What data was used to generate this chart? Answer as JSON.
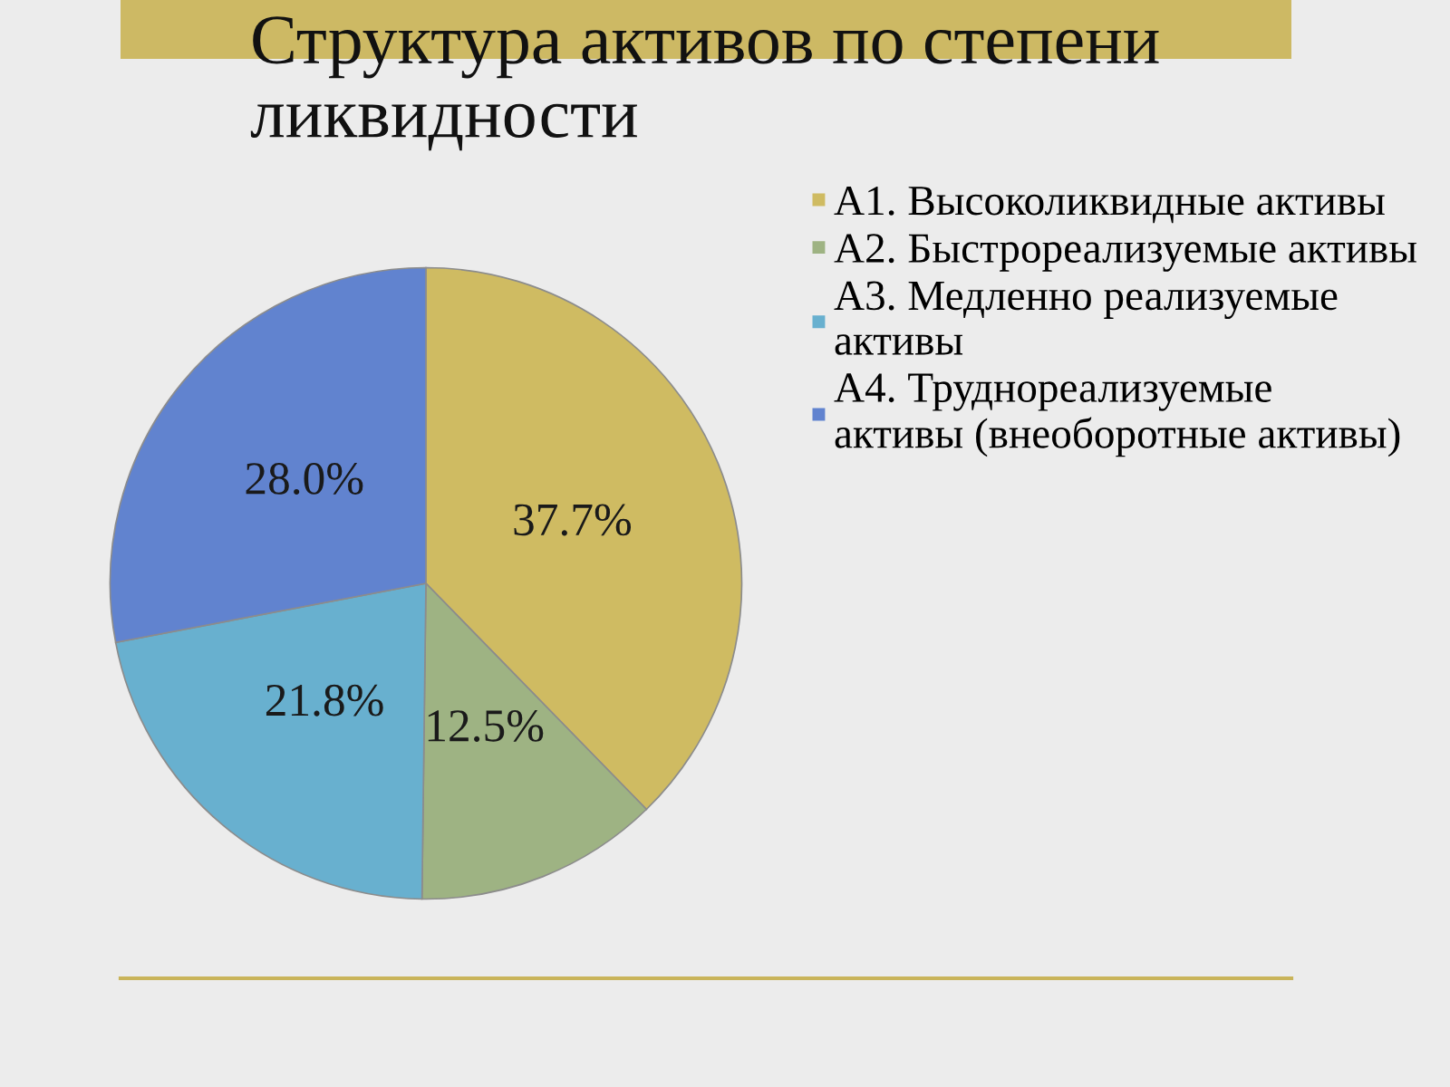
{
  "chart_data": {
    "type": "pie",
    "title": "Структура активов по степени ликвидности",
    "categories": [
      "А1. Высоколиквидные активы",
      "А2. Быстрореализуемые активы",
      "А3. Медленно реализуемые\nактивы",
      "А4. Труднореализуемые\nактивы (внеоборотные активы)"
    ],
    "values": [
      37.7,
      12.5,
      21.8,
      28.0
    ],
    "colors": [
      "#cfbb62",
      "#9eb383",
      "#68b0cf",
      "#6183cf"
    ],
    "value_labels": [
      "37.7%",
      "12.5%",
      "21.8%",
      "28.0%"
    ],
    "legend": "right"
  }
}
